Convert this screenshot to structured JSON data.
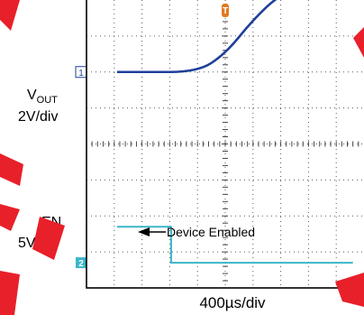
{
  "chart_data": {
    "type": "line",
    "grid": true,
    "x_divisions": 10,
    "y_divisions": 8,
    "xlabel": "400µs/div",
    "trigger_marker": "T",
    "channels": [
      {
        "id": "1",
        "marker": "1",
        "name_main": "V",
        "name_sub": "OUT",
        "scale_label": "2V/div",
        "color": "#1f3f9a",
        "unit": "V",
        "volts_per_div": 2,
        "zero_div": 2.0,
        "points": [
          [
            -3.9,
            0.0
          ],
          [
            -3.0,
            0.0
          ],
          [
            -1.0,
            0.0
          ],
          [
            0.0,
            1.0
          ],
          [
            1.0,
            2.9
          ],
          [
            2.0,
            4.35
          ],
          [
            3.0,
            4.75
          ],
          [
            4.0,
            4.8
          ],
          [
            4.6,
            4.8
          ]
        ]
      },
      {
        "id": "2",
        "marker": "2",
        "name_main": "EN",
        "name_sub": "",
        "scale_label": "5V/div",
        "color": "#3ab6c9",
        "unit": "V",
        "volts_per_div": 5,
        "zero_div": -3.3,
        "points": [
          [
            -3.9,
            5.0
          ],
          [
            -1.95,
            5.0
          ],
          [
            -1.95,
            0.0
          ],
          [
            4.6,
            0.0
          ]
        ]
      }
    ],
    "annotations": [
      {
        "text": "Device Enabled",
        "x": -1.95,
        "y_div": -2.25
      }
    ]
  }
}
